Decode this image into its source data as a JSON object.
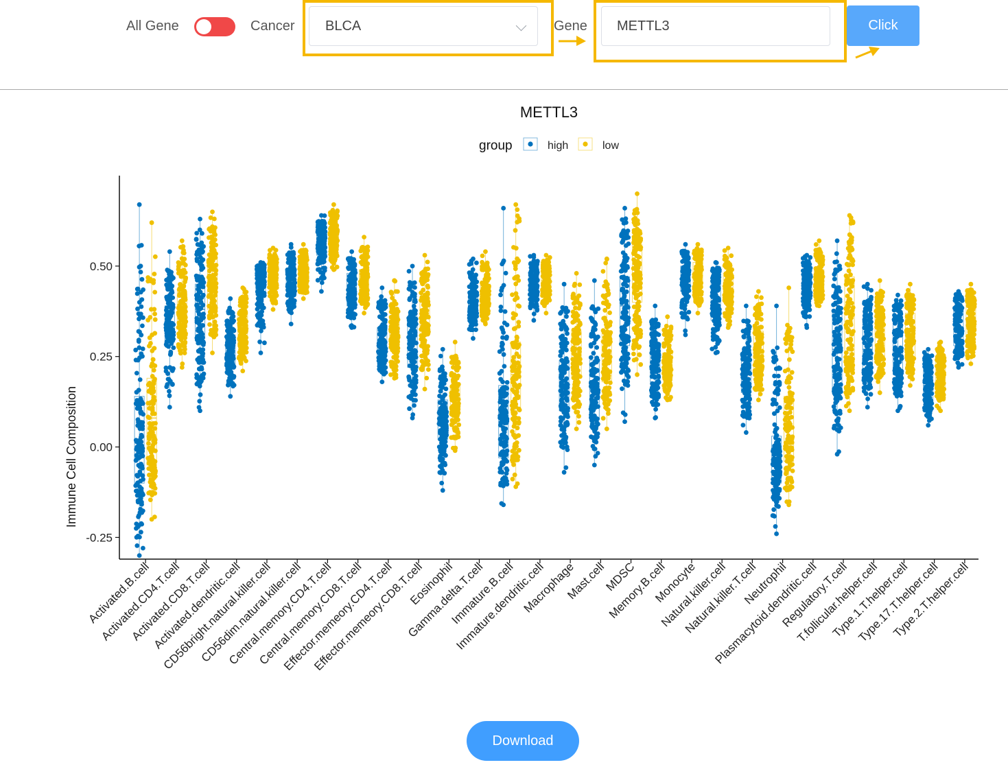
{
  "toolbar": {
    "all_gene_label": "All Gene",
    "cancer_label": "Cancer",
    "cancer_value": "BLCA",
    "gene_label": "Gene",
    "gene_value": "METTL3",
    "click_label": "Click",
    "highlight_color": "#f5b800"
  },
  "download_label": "Download",
  "chart_data": {
    "type": "box-jitter",
    "title": "METTL3",
    "legend_title": "group",
    "legend_position": "top",
    "ylabel": "Immune Cell Composition",
    "xlabel": "",
    "ylim": [
      -0.31,
      0.75
    ],
    "yticks": [
      -0.25,
      0.0,
      0.25,
      0.5
    ],
    "ytick_labels": [
      "-0.25",
      "0.00",
      "0.25",
      "0.50"
    ],
    "grid": false,
    "categories": [
      "Activated.B.cell",
      "Activated.CD4.T.cell",
      "Activated.CD8.T.cell",
      "Activated.dendritic.cell",
      "CD56bright.natural.killer.cell",
      "CD56dim.natural.killer.cell",
      "Central.memory.CD4.T.cell",
      "Central.memory.CD8.T.cell",
      "Effector.memeory.CD4.T.cell",
      "Effector.memeory.CD8.T.cell",
      "Eosinophil",
      "Gamma.delta.T.cell",
      "Immature.B.cell",
      "Immature.dendritic.cell",
      "Macrophage",
      "Mast.cell",
      "MDSC",
      "Memory.B.cell",
      "Monocyte",
      "Natural.killer.cell",
      "Natural.killer.T.cell",
      "Neutrophil",
      "Plasmacytoid.dendritic.cell",
      "Regulatory.T.cell",
      "T.follicular.helper.cell",
      "Type.1.T.helper.cell",
      "Type.17.T.helper.cell",
      "Type.2.T.helper.cell"
    ],
    "series": [
      {
        "name": "high",
        "color": "#0072bd",
        "min": [
          -0.3,
          0.11,
          0.1,
          0.14,
          0.26,
          0.34,
          0.43,
          0.33,
          0.18,
          0.08,
          -0.12,
          0.3,
          -0.16,
          0.35,
          -0.07,
          -0.05,
          0.07,
          0.08,
          0.31,
          0.26,
          0.04,
          -0.24,
          0.33,
          -0.02,
          0.11,
          0.1,
          0.06,
          0.22
        ],
        "q1": [
          -0.1,
          0.29,
          0.3,
          0.22,
          0.42,
          0.43,
          0.53,
          0.39,
          0.25,
          0.22,
          0.02,
          0.37,
          -0.03,
          0.42,
          0.1,
          0.08,
          0.28,
          0.18,
          0.43,
          0.35,
          0.15,
          -0.1,
          0.42,
          0.15,
          0.2,
          0.2,
          0.13,
          0.28
        ],
        "median": [
          0.0,
          0.34,
          0.38,
          0.26,
          0.46,
          0.46,
          0.56,
          0.44,
          0.29,
          0.27,
          0.07,
          0.4,
          0.07,
          0.45,
          0.17,
          0.16,
          0.39,
          0.22,
          0.47,
          0.41,
          0.21,
          -0.04,
          0.45,
          0.27,
          0.27,
          0.27,
          0.17,
          0.33
        ],
        "q3": [
          0.14,
          0.39,
          0.45,
          0.31,
          0.49,
          0.49,
          0.59,
          0.48,
          0.33,
          0.36,
          0.13,
          0.43,
          0.17,
          0.48,
          0.24,
          0.24,
          0.47,
          0.27,
          0.5,
          0.46,
          0.26,
          0.03,
          0.48,
          0.38,
          0.34,
          0.34,
          0.22,
          0.38
        ],
        "max": [
          0.67,
          0.54,
          0.63,
          0.41,
          0.51,
          0.56,
          0.64,
          0.54,
          0.44,
          0.5,
          0.27,
          0.52,
          0.66,
          0.53,
          0.45,
          0.46,
          0.66,
          0.39,
          0.56,
          0.51,
          0.39,
          0.39,
          0.53,
          0.57,
          0.45,
          0.42,
          0.27,
          0.43
        ]
      },
      {
        "name": "low",
        "color": "#efc000",
        "min": [
          -0.2,
          0.22,
          0.26,
          0.21,
          0.38,
          0.41,
          0.49,
          0.37,
          0.19,
          0.16,
          -0.01,
          0.34,
          -0.11,
          0.37,
          0.05,
          0.05,
          0.2,
          0.13,
          0.37,
          0.33,
          0.13,
          -0.16,
          0.39,
          0.1,
          0.15,
          0.17,
          0.1,
          0.23
        ],
        "q1": [
          -0.05,
          0.33,
          0.38,
          0.28,
          0.44,
          0.45,
          0.55,
          0.42,
          0.27,
          0.31,
          0.09,
          0.39,
          0.1,
          0.43,
          0.19,
          0.18,
          0.4,
          0.19,
          0.44,
          0.4,
          0.21,
          -0.04,
          0.43,
          0.23,
          0.24,
          0.24,
          0.16,
          0.31
        ],
        "median": [
          0.08,
          0.38,
          0.45,
          0.33,
          0.47,
          0.48,
          0.58,
          0.45,
          0.32,
          0.36,
          0.13,
          0.42,
          0.2,
          0.46,
          0.26,
          0.25,
          0.48,
          0.22,
          0.48,
          0.44,
          0.27,
          0.05,
          0.46,
          0.37,
          0.31,
          0.31,
          0.2,
          0.35
        ],
        "q3": [
          0.19,
          0.43,
          0.52,
          0.37,
          0.5,
          0.51,
          0.61,
          0.49,
          0.36,
          0.41,
          0.17,
          0.45,
          0.29,
          0.49,
          0.32,
          0.32,
          0.56,
          0.26,
          0.51,
          0.48,
          0.32,
          0.14,
          0.49,
          0.47,
          0.37,
          0.37,
          0.24,
          0.4
        ],
        "max": [
          0.62,
          0.57,
          0.65,
          0.44,
          0.55,
          0.56,
          0.67,
          0.58,
          0.46,
          0.53,
          0.29,
          0.54,
          0.67,
          0.53,
          0.48,
          0.52,
          0.7,
          0.36,
          0.56,
          0.55,
          0.43,
          0.44,
          0.57,
          0.64,
          0.46,
          0.45,
          0.29,
          0.45
        ]
      }
    ]
  }
}
